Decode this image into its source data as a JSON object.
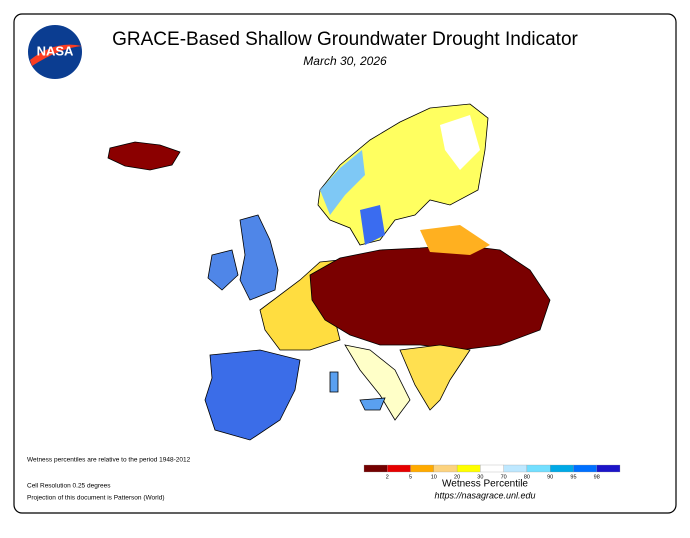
{
  "header": {
    "logo": "NASA",
    "title": "GRACE-Based Shallow Groundwater Drought Indicator",
    "date": "March 30, 2026"
  },
  "legend": {
    "title": "Wetness Percentile",
    "url": "https://nasagrace.unl.edu",
    "colors": [
      "#730000",
      "#e60000",
      "#ffaa00",
      "#fcd37f",
      "#ffff00",
      "#ffffff",
      "#bee8ff",
      "#73dfff",
      "#00a9e6",
      "#0070ff",
      "#1c14c8"
    ],
    "labels": [
      "2",
      "5",
      "10",
      "20",
      "30",
      "70",
      "80",
      "90",
      "95",
      "98"
    ]
  },
  "notes": [
    "Wetness percentiles are relative to the period 1948-2012",
    "Cell Resolution 0.25 degrees",
    "Projection of this document is Patterson (World)"
  ]
}
